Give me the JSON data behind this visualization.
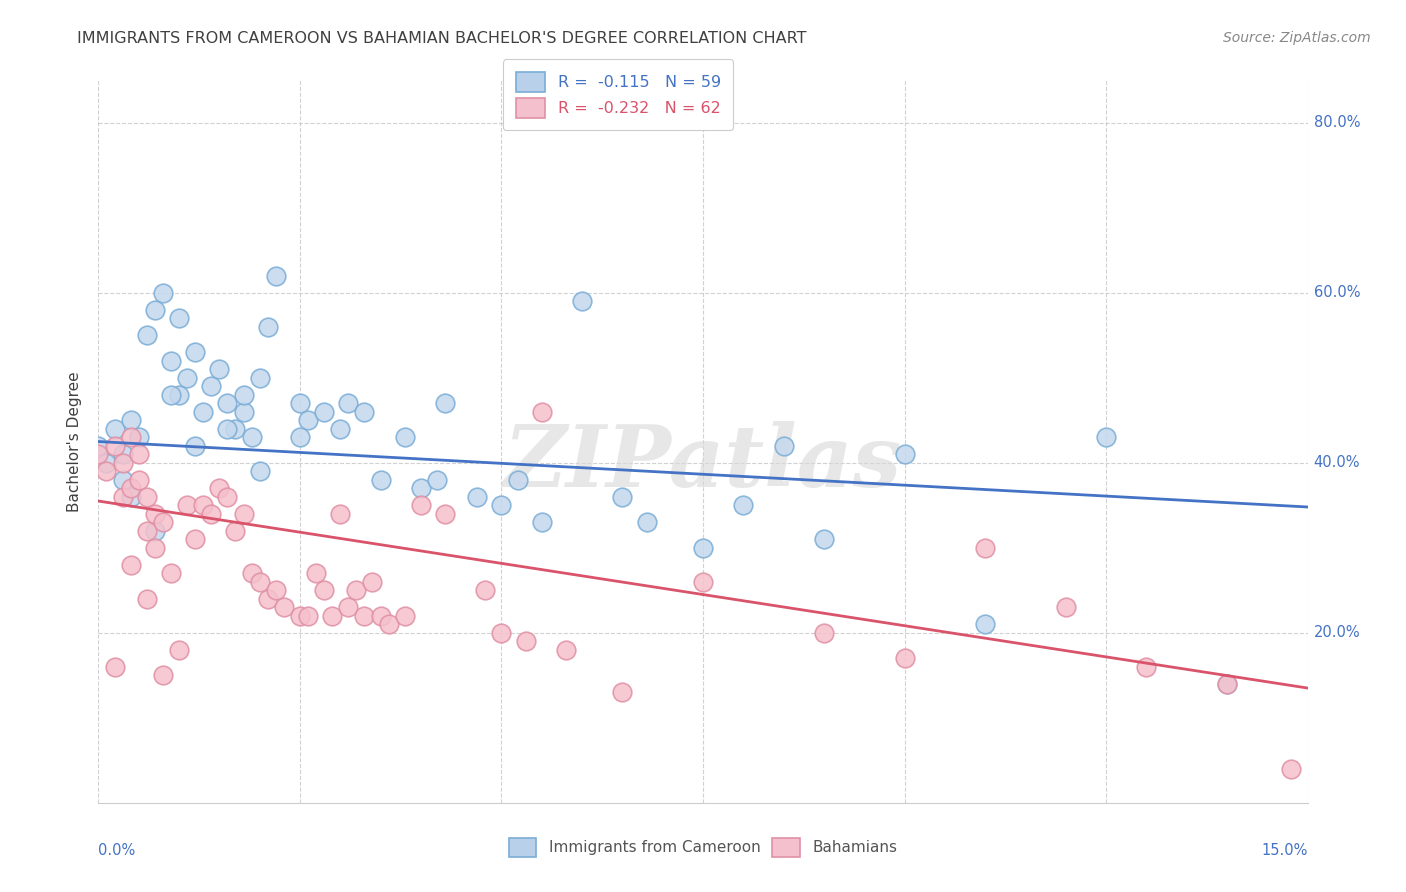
{
  "title": "IMMIGRANTS FROM CAMEROON VS BAHAMIAN BACHELOR'S DEGREE CORRELATION CHART",
  "source": "Source: ZipAtlas.com",
  "ylabel": "Bachelor's Degree",
  "legend_blue_label": "R =  -0.115   N = 59",
  "legend_pink_label": "R =  -0.232   N = 62",
  "legend_blue_color": "#b8d0ea",
  "legend_pink_color": "#f4c0ce",
  "trendline_blue_color": "#4472c4",
  "trendline_pink_color": "#d9536a",
  "dot_blue_face": "#c5d8ee",
  "dot_pink_face": "#f5c0cc",
  "dot_blue_edge": "#7aadd6",
  "dot_pink_edge": "#e090a5",
  "watermark": "ZIPatlas",
  "title_color": "#404040",
  "axis_label_color": "#4472c4",
  "background_color": "#ffffff",
  "blue_points_x": [
    0.0,
    0.001,
    0.002,
    0.003,
    0.003,
    0.004,
    0.005,
    0.006,
    0.007,
    0.008,
    0.009,
    0.01,
    0.01,
    0.011,
    0.012,
    0.013,
    0.014,
    0.015,
    0.016,
    0.017,
    0.018,
    0.018,
    0.019,
    0.02,
    0.021,
    0.022,
    0.025,
    0.026,
    0.028,
    0.03,
    0.031,
    0.033,
    0.035,
    0.038,
    0.04,
    0.042,
    0.043,
    0.047,
    0.05,
    0.052,
    0.055,
    0.06,
    0.065,
    0.068,
    0.075,
    0.08,
    0.085,
    0.09,
    0.1,
    0.11,
    0.125,
    0.14,
    0.004,
    0.007,
    0.009,
    0.012,
    0.016,
    0.02,
    0.025
  ],
  "blue_points_y": [
    0.42,
    0.4,
    0.44,
    0.41,
    0.38,
    0.45,
    0.43,
    0.55,
    0.58,
    0.6,
    0.52,
    0.57,
    0.48,
    0.5,
    0.53,
    0.46,
    0.49,
    0.51,
    0.47,
    0.44,
    0.46,
    0.48,
    0.43,
    0.5,
    0.56,
    0.62,
    0.47,
    0.45,
    0.46,
    0.44,
    0.47,
    0.46,
    0.38,
    0.43,
    0.37,
    0.38,
    0.47,
    0.36,
    0.35,
    0.38,
    0.33,
    0.59,
    0.36,
    0.33,
    0.3,
    0.35,
    0.42,
    0.31,
    0.41,
    0.21,
    0.43,
    0.14,
    0.36,
    0.32,
    0.48,
    0.42,
    0.44,
    0.39,
    0.43
  ],
  "pink_points_x": [
    0.0,
    0.001,
    0.002,
    0.003,
    0.003,
    0.004,
    0.004,
    0.005,
    0.005,
    0.006,
    0.006,
    0.007,
    0.007,
    0.008,
    0.009,
    0.01,
    0.011,
    0.012,
    0.013,
    0.014,
    0.015,
    0.016,
    0.017,
    0.018,
    0.019,
    0.02,
    0.021,
    0.022,
    0.023,
    0.025,
    0.026,
    0.027,
    0.028,
    0.029,
    0.03,
    0.031,
    0.032,
    0.033,
    0.034,
    0.035,
    0.036,
    0.038,
    0.04,
    0.043,
    0.048,
    0.05,
    0.053,
    0.055,
    0.058,
    0.065,
    0.075,
    0.09,
    0.1,
    0.11,
    0.12,
    0.13,
    0.14,
    0.148,
    0.002,
    0.004,
    0.006,
    0.008
  ],
  "pink_points_y": [
    0.41,
    0.39,
    0.42,
    0.4,
    0.36,
    0.43,
    0.37,
    0.41,
    0.38,
    0.36,
    0.32,
    0.34,
    0.3,
    0.33,
    0.27,
    0.18,
    0.35,
    0.31,
    0.35,
    0.34,
    0.37,
    0.36,
    0.32,
    0.34,
    0.27,
    0.26,
    0.24,
    0.25,
    0.23,
    0.22,
    0.22,
    0.27,
    0.25,
    0.22,
    0.34,
    0.23,
    0.25,
    0.22,
    0.26,
    0.22,
    0.21,
    0.22,
    0.35,
    0.34,
    0.25,
    0.2,
    0.19,
    0.46,
    0.18,
    0.13,
    0.26,
    0.2,
    0.17,
    0.3,
    0.23,
    0.16,
    0.14,
    0.04,
    0.16,
    0.28,
    0.24,
    0.15
  ],
  "xlim": [
    0.0,
    0.15
  ],
  "ylim": [
    0.0,
    0.85
  ],
  "ytick_positions": [
    0.2,
    0.4,
    0.6,
    0.8
  ],
  "ytick_labels": [
    "20.0%",
    "40.0%",
    "60.0%",
    "80.0%"
  ],
  "xtick_positions": [
    0.0,
    0.025,
    0.05,
    0.075,
    0.1,
    0.125,
    0.15
  ],
  "blue_trend_x": [
    0.0,
    0.15
  ],
  "blue_trend_y": [
    0.425,
    0.348
  ],
  "pink_trend_x": [
    0.0,
    0.15
  ],
  "pink_trend_y": [
    0.355,
    0.135
  ]
}
